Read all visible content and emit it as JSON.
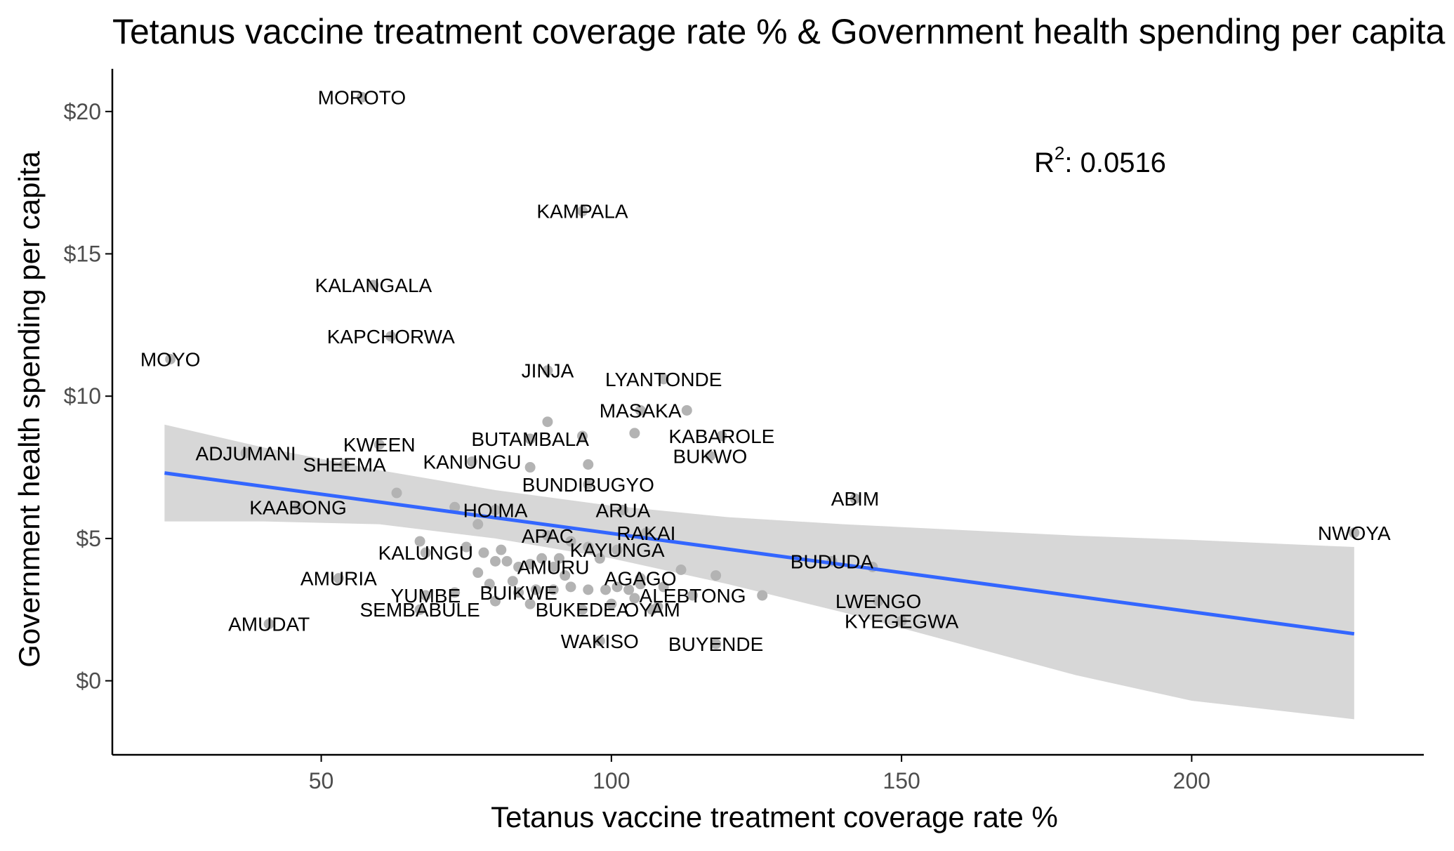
{
  "chart_data": {
    "type": "scatter",
    "title": "Tetanus vaccine treatment coverage rate % & Government health spending per capita",
    "xlabel": "Tetanus vaccine treatment coverage rate %",
    "ylabel": "Government health spending per capita",
    "xlim": [
      14,
      240
    ],
    "ylim": [
      -2.6,
      21.5
    ],
    "x_ticks": [
      50,
      100,
      150,
      200
    ],
    "y_ticks": [
      0,
      5,
      10,
      15,
      20
    ],
    "y_tick_labels": [
      "$0",
      "$5",
      "$10",
      "$15",
      "$20"
    ],
    "grid": false,
    "colors": {
      "points": "#b3b3b3",
      "fit_line": "#3366ff",
      "ribbon": "#d3d3d3",
      "axis": "#000000"
    },
    "annotation": {
      "r2_label": "R",
      "r2_sup": "2",
      "r2_value": ": 0.0516"
    },
    "fit": {
      "x": [
        23,
        228
      ],
      "y": [
        7.3,
        1.65
      ],
      "ci_upper_x": [
        23,
        40,
        60,
        80,
        100,
        120,
        140,
        160,
        180,
        200,
        228
      ],
      "ci_upper": [
        9.0,
        8.2,
        7.4,
        6.7,
        6.15,
        5.75,
        5.5,
        5.3,
        5.1,
        4.95,
        4.7
      ],
      "ci_lower": [
        5.6,
        5.6,
        5.5,
        5.0,
        4.3,
        3.4,
        2.4,
        1.3,
        0.2,
        -0.7,
        -1.35
      ]
    },
    "labeled_points": [
      {
        "label": "MOROTO",
        "x": 57,
        "y": 20.5
      },
      {
        "label": "KAMPALA",
        "x": 95,
        "y": 16.5
      },
      {
        "label": "KALANGALA",
        "x": 59,
        "y": 13.9
      },
      {
        "label": "KAPCHORWA",
        "x": 62,
        "y": 12.1
      },
      {
        "label": "MOYO",
        "x": 24,
        "y": 11.3
      },
      {
        "label": "JINJA",
        "x": 89,
        "y": 10.9
      },
      {
        "label": "LYANTONDE",
        "x": 109,
        "y": 10.6
      },
      {
        "label": "MASAKA",
        "x": 105,
        "y": 9.5
      },
      {
        "label": "KABAROLE",
        "x": 119,
        "y": 8.6
      },
      {
        "label": "BUTAMBALA",
        "x": 86,
        "y": 8.5
      },
      {
        "label": "BUKWO",
        "x": 117,
        "y": 7.9
      },
      {
        "label": "KWEEN",
        "x": 60,
        "y": 8.3
      },
      {
        "label": "ADJUMANI",
        "x": 37,
        "y": 8.0
      },
      {
        "label": "SHEEMA",
        "x": 54,
        "y": 7.6
      },
      {
        "label": "KANUNGU",
        "x": 76,
        "y": 7.7
      },
      {
        "label": "BUNDIBUGYO",
        "x": 96,
        "y": 6.9
      },
      {
        "label": "ABIM",
        "x": 142,
        "y": 6.4
      },
      {
        "label": "ARUA",
        "x": 102,
        "y": 6.0
      },
      {
        "label": "KAABONG",
        "x": 46,
        "y": 6.1
      },
      {
        "label": "HOIMA",
        "x": 80,
        "y": 6.0
      },
      {
        "label": "RAKAI",
        "x": 106,
        "y": 5.2
      },
      {
        "label": "APAC",
        "x": 89,
        "y": 5.1
      },
      {
        "label": "NWOYA",
        "x": 228,
        "y": 5.2
      },
      {
        "label": "KAYUNGA",
        "x": 101,
        "y": 4.6
      },
      {
        "label": "KALUNGU",
        "x": 68,
        "y": 4.5
      },
      {
        "label": "BUDUDA",
        "x": 138,
        "y": 4.2
      },
      {
        "label": "AMURU",
        "x": 90,
        "y": 4.0
      },
      {
        "label": "AGAGO",
        "x": 105,
        "y": 3.6
      },
      {
        "label": "AMURIA",
        "x": 53,
        "y": 3.6
      },
      {
        "label": "BUIKWE",
        "x": 84,
        "y": 3.1
      },
      {
        "label": "ALEBTONG",
        "x": 114,
        "y": 3.0
      },
      {
        "label": "YUMBE",
        "x": 68,
        "y": 3.0
      },
      {
        "label": "LWENGO",
        "x": 146,
        "y": 2.8
      },
      {
        "label": "BUKEDEA",
        "x": 95,
        "y": 2.5
      },
      {
        "label": "OYAM",
        "x": 107,
        "y": 2.5
      },
      {
        "label": "SEMBABULE",
        "x": 67,
        "y": 2.5
      },
      {
        "label": "KYEGEGWA",
        "x": 150,
        "y": 2.1
      },
      {
        "label": "AMUDAT",
        "x": 41,
        "y": 2.0
      },
      {
        "label": "WAKISO",
        "x": 98,
        "y": 1.4
      },
      {
        "label": "BUYENDE",
        "x": 118,
        "y": 1.3
      }
    ],
    "unlabeled_points": [
      {
        "x": 89,
        "y": 9.1
      },
      {
        "x": 95,
        "y": 8.6
      },
      {
        "x": 104,
        "y": 8.7
      },
      {
        "x": 113,
        "y": 9.5
      },
      {
        "x": 86,
        "y": 7.5
      },
      {
        "x": 96,
        "y": 7.6
      },
      {
        "x": 63,
        "y": 6.6
      },
      {
        "x": 73,
        "y": 6.1
      },
      {
        "x": 77,
        "y": 5.5
      },
      {
        "x": 93,
        "y": 4.9
      },
      {
        "x": 96,
        "y": 4.7
      },
      {
        "x": 67,
        "y": 4.9
      },
      {
        "x": 75,
        "y": 4.7
      },
      {
        "x": 78,
        "y": 4.5
      },
      {
        "x": 81,
        "y": 4.6
      },
      {
        "x": 80,
        "y": 4.2
      },
      {
        "x": 82,
        "y": 4.2
      },
      {
        "x": 84,
        "y": 4.0
      },
      {
        "x": 86,
        "y": 4.1
      },
      {
        "x": 88,
        "y": 4.3
      },
      {
        "x": 91,
        "y": 4.3
      },
      {
        "x": 92,
        "y": 3.7
      },
      {
        "x": 77,
        "y": 3.8
      },
      {
        "x": 79,
        "y": 3.4
      },
      {
        "x": 83,
        "y": 3.5
      },
      {
        "x": 87,
        "y": 3.2
      },
      {
        "x": 90,
        "y": 3.2
      },
      {
        "x": 93,
        "y": 3.3
      },
      {
        "x": 96,
        "y": 3.2
      },
      {
        "x": 99,
        "y": 3.2
      },
      {
        "x": 101,
        "y": 3.3
      },
      {
        "x": 103,
        "y": 3.2
      },
      {
        "x": 105,
        "y": 3.4
      },
      {
        "x": 109,
        "y": 3.3
      },
      {
        "x": 112,
        "y": 3.9
      },
      {
        "x": 118,
        "y": 3.7
      },
      {
        "x": 126,
        "y": 3.0
      },
      {
        "x": 145,
        "y": 4.0
      },
      {
        "x": 80,
        "y": 2.8
      },
      {
        "x": 86,
        "y": 2.7
      },
      {
        "x": 100,
        "y": 2.7
      },
      {
        "x": 104,
        "y": 2.9
      },
      {
        "x": 108,
        "y": 2.6
      },
      {
        "x": 98,
        "y": 4.3
      },
      {
        "x": 73,
        "y": 3.1
      }
    ]
  }
}
